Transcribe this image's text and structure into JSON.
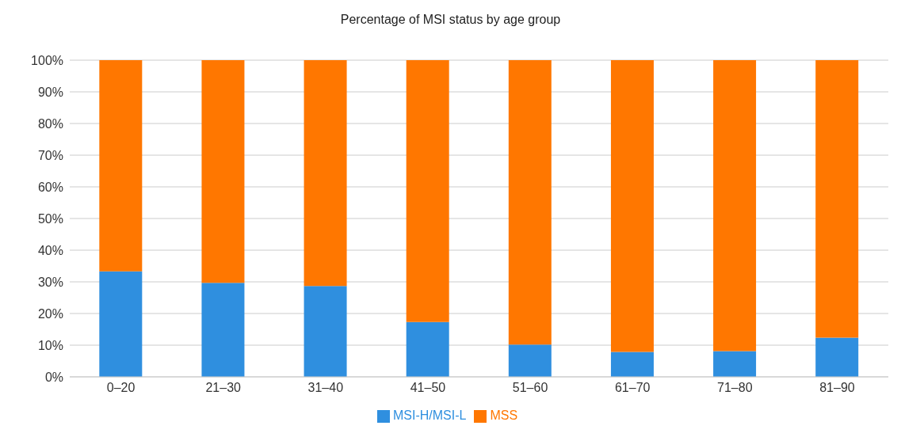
{
  "chart_data": {
    "type": "bar",
    "title": "Percentage of MSI status by age group",
    "categories": [
      "0–20",
      "21–30",
      "31–40",
      "41–50",
      "51–60",
      "61–70",
      "71–80",
      "81–90"
    ],
    "series": [
      {
        "name": "MSI-H/MSI-L",
        "color": "#2f8fdf",
        "values": [
          33.3,
          29.7,
          28.7,
          17.3,
          10.2,
          7.9,
          8.1,
          12.4
        ]
      },
      {
        "name": "MSS",
        "color": "#ff7700",
        "values": [
          66.7,
          70.3,
          71.3,
          82.7,
          89.8,
          92.1,
          91.9,
          87.6
        ]
      }
    ],
    "stacked": true,
    "ylim": [
      0,
      100
    ],
    "yticks": [
      {
        "value": 0,
        "label": "0%"
      },
      {
        "value": 10,
        "label": "10%"
      },
      {
        "value": 20,
        "label": "20%"
      },
      {
        "value": 30,
        "label": "30%"
      },
      {
        "value": 40,
        "label": "40%"
      },
      {
        "value": 50,
        "label": "50%"
      },
      {
        "value": 60,
        "label": "60%"
      },
      {
        "value": 70,
        "label": "70%"
      },
      {
        "value": 80,
        "label": "80%"
      },
      {
        "value": 90,
        "label": "90%"
      },
      {
        "value": 100,
        "label": "100%"
      }
    ],
    "grid": "y",
    "legend": "bottom"
  }
}
